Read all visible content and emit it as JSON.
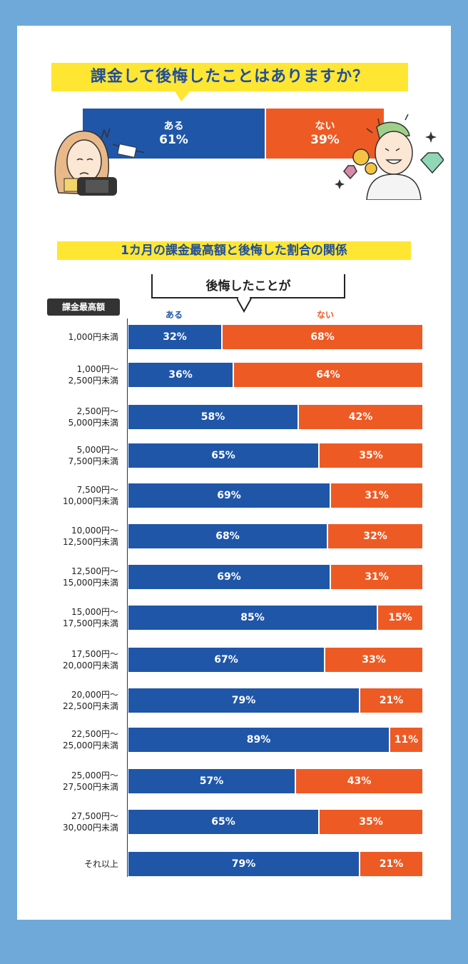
{
  "colors": {
    "aru": "#1f56a8",
    "nai": "#ee5a24",
    "highlight": "#ffe633",
    "frame": "#6fa9da"
  },
  "header": {
    "title": "課金して後悔したことはありますか？"
  },
  "top_chart": {
    "aru_label": "ある",
    "aru_value": "61%",
    "nai_label": "ない",
    "nai_value": "39%",
    "aru_fraction": 0.61
  },
  "section": {
    "subtitle": "1カ月の課金最高額と後悔した割合の関係",
    "callout": "後悔したことが"
  },
  "chart_data": [
    {
      "type": "bar",
      "categories": [
        "課金して後悔したことはありますか？"
      ],
      "series": [
        {
          "name": "ある",
          "values": [
            61
          ]
        },
        {
          "name": "ない",
          "values": [
            39
          ]
        }
      ],
      "title": "課金して後悔したことはありますか？",
      "xlabel": "",
      "ylabel": "",
      "ylim": [
        0,
        100
      ]
    },
    {
      "type": "bar",
      "title": "1カ月の課金最高額と後悔した割合の関係",
      "category_header": "課金最高額",
      "categories": [
        [
          "1,000円未満"
        ],
        [
          "1,000円～",
          "2,500円未満"
        ],
        [
          "2,500円～",
          "5,000円未満"
        ],
        [
          "5,000円～",
          "7,500円未満"
        ],
        [
          "7,500円～",
          "10,000円未満"
        ],
        [
          "10,000円～",
          "12,500円未満"
        ],
        [
          "12,500円～",
          "15,000円未満"
        ],
        [
          "15,000円～",
          "17,500円未満"
        ],
        [
          "17,500円～",
          "20,000円未満"
        ],
        [
          "20,000円～",
          "22,500円未満"
        ],
        [
          "22,500円～",
          "25,000円未満"
        ],
        [
          "25,000円～",
          "27,500円未満"
        ],
        [
          "27,500円～",
          "30,000円未満"
        ],
        [
          "それ以上"
        ]
      ],
      "series": [
        {
          "name": "ある",
          "values": [
            32,
            36,
            58,
            65,
            69,
            68,
            69,
            85,
            67,
            79,
            89,
            57,
            65,
            79
          ]
        },
        {
          "name": "ない",
          "values": [
            68,
            64,
            42,
            35,
            31,
            32,
            31,
            15,
            33,
            21,
            11,
            43,
            35,
            21
          ]
        }
      ],
      "xlabel": "",
      "ylabel": "",
      "ylim": [
        0,
        100
      ]
    }
  ]
}
